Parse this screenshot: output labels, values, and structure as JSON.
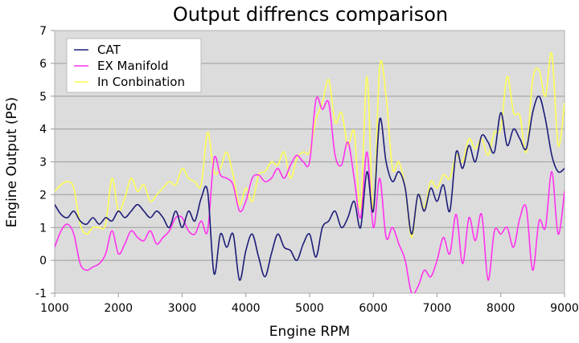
{
  "chart_data": {
    "type": "line",
    "title": "Output diffrencs comparison",
    "xlabel": "Engine RPM",
    "ylabel": "Engine Output (PS)",
    "xlim": [
      1000,
      9000
    ],
    "ylim": [
      -1,
      7
    ],
    "xticks": [
      1000,
      2000,
      3000,
      4000,
      5000,
      6000,
      7000,
      8000,
      9000
    ],
    "yticks": [
      -1,
      0,
      1,
      2,
      3,
      4,
      5,
      6,
      7
    ],
    "grid": "horizontal",
    "legend_position": "top-left",
    "background_color": "#dcdcdc",
    "x_start": 1000,
    "x_step": 100,
    "series": [
      {
        "name": "CAT",
        "color": "#1c1c78",
        "values": [
          1.7,
          1.4,
          1.3,
          1.5,
          1.2,
          1.1,
          1.3,
          1.1,
          1.3,
          1.2,
          1.5,
          1.3,
          1.5,
          1.7,
          1.5,
          1.3,
          1.5,
          1.3,
          1.0,
          1.5,
          1.0,
          1.5,
          1.2,
          1.9,
          2.1,
          -0.4,
          0.8,
          0.4,
          0.8,
          -0.6,
          0.3,
          0.8,
          0.1,
          -0.5,
          0.2,
          0.8,
          0.4,
          0.3,
          0.0,
          0.5,
          0.8,
          0.1,
          1.0,
          1.2,
          1.5,
          1.0,
          1.3,
          1.8,
          1.0,
          2.7,
          1.5,
          4.3,
          3.0,
          2.4,
          2.7,
          2.2,
          0.8,
          2.0,
          1.5,
          2.2,
          1.8,
          2.3,
          1.5,
          3.3,
          2.8,
          3.5,
          3.0,
          3.8,
          3.6,
          3.3,
          4.5,
          3.5,
          4.0,
          3.7,
          3.4,
          4.5,
          5.0,
          4.3,
          3.2,
          2.7,
          2.8
        ]
      },
      {
        "name": "EX Manifold",
        "color": "#ff33ee",
        "values": [
          0.4,
          0.9,
          1.1,
          0.8,
          -0.1,
          -0.3,
          -0.2,
          -0.1,
          0.2,
          0.9,
          0.2,
          0.5,
          0.9,
          0.7,
          0.6,
          0.9,
          0.5,
          0.7,
          0.9,
          1.3,
          1.3,
          0.9,
          0.8,
          1.2,
          0.9,
          3.1,
          2.6,
          2.5,
          2.3,
          1.5,
          1.8,
          2.5,
          2.6,
          2.4,
          2.5,
          2.8,
          2.5,
          2.9,
          3.2,
          3.0,
          3.0,
          4.9,
          4.6,
          4.8,
          3.2,
          2.9,
          3.6,
          2.5,
          1.3,
          3.3,
          1.0,
          2.5,
          0.7,
          1.0,
          0.5,
          0.0,
          -1.0,
          -0.8,
          -0.3,
          -0.5,
          0.0,
          0.7,
          0.2,
          1.4,
          -0.1,
          1.3,
          0.6,
          1.4,
          -0.6,
          0.9,
          0.8,
          1.0,
          0.4,
          1.3,
          1.6,
          -0.3,
          1.2,
          1.0,
          2.7,
          0.8,
          2.1
        ]
      },
      {
        "name": "In Conbination",
        "color": "#ffff55",
        "values": [
          2.1,
          2.3,
          2.4,
          2.2,
          1.1,
          0.8,
          1.0,
          1.0,
          1.1,
          2.5,
          1.5,
          1.9,
          2.5,
          2.1,
          2.3,
          1.8,
          2.0,
          2.2,
          2.4,
          2.3,
          2.8,
          2.5,
          2.4,
          2.3,
          3.9,
          2.7,
          2.8,
          3.3,
          2.6,
          1.7,
          2.2,
          1.8,
          2.6,
          2.7,
          3.0,
          2.9,
          3.3,
          2.5,
          3.1,
          3.3,
          3.3,
          4.3,
          4.8,
          5.5,
          4.2,
          4.5,
          3.5,
          3.9,
          1.6,
          5.6,
          1.5,
          5.9,
          5.0,
          2.8,
          3.0,
          2.2,
          0.7,
          2.0,
          1.6,
          2.4,
          2.2,
          2.6,
          2.5,
          3.2,
          3.0,
          3.7,
          3.4,
          3.7,
          3.2,
          3.9,
          4.0,
          5.6,
          4.5,
          4.4,
          3.3,
          5.5,
          5.8,
          5.0,
          6.3,
          3.5,
          4.8
        ]
      }
    ]
  }
}
